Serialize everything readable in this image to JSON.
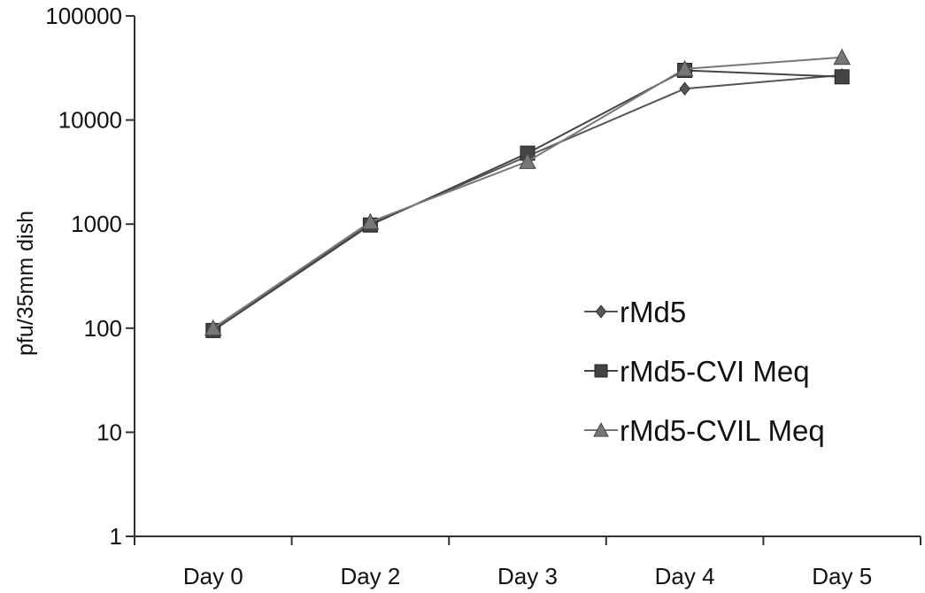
{
  "chart_data": {
    "type": "line",
    "title": "",
    "xlabel": "",
    "ylabel": "pfu/35mm dish",
    "yscale": "log",
    "ylim": [
      1,
      100000
    ],
    "y_ticks": [
      "1",
      "10",
      "100",
      "1000",
      "10000",
      "100000"
    ],
    "categories": [
      "Day 0",
      "Day 2",
      "Day 3",
      "Day 4",
      "Day 5"
    ],
    "grid": false,
    "legend_position": "right",
    "series": [
      {
        "name": "rMd5",
        "marker": "diamond",
        "color": "#555555",
        "values": [
          100,
          1000,
          4500,
          20000,
          27000
        ]
      },
      {
        "name": "rMd5-CVI Meq",
        "marker": "square",
        "color": "#444444",
        "values": [
          95,
          980,
          4800,
          30000,
          26000
        ]
      },
      {
        "name": "rMd5-CVIL Meq",
        "marker": "triangle",
        "color": "#777777",
        "values": [
          100,
          1050,
          4000,
          31000,
          40000
        ]
      }
    ]
  }
}
